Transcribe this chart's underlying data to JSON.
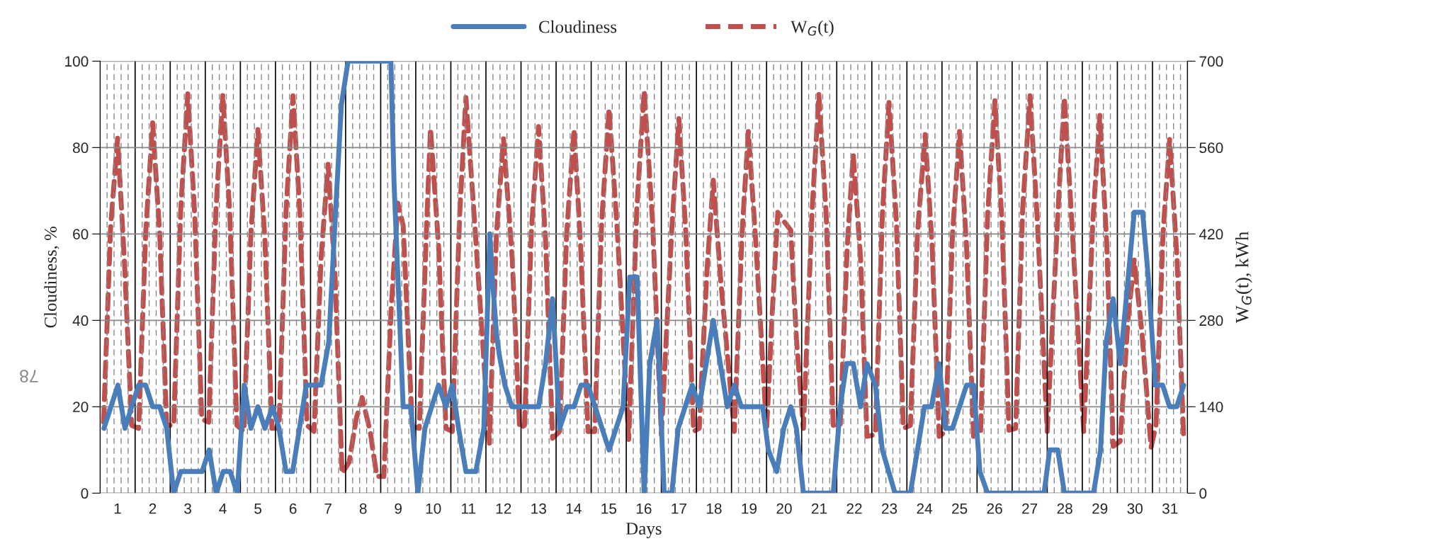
{
  "chart_data": {
    "type": "line",
    "xlabel": "Days",
    "ylabel": "Cloudiness, %",
    "y2label": "W$_{G}$(t), kWh",
    "xlim": [
      0,
      31
    ],
    "xticks": [
      {
        "value": 0,
        "label": null
      },
      {
        "value": 0.5,
        "label": "1"
      },
      {
        "value": 1,
        "label": null
      },
      {
        "value": 1.5,
        "label": "2"
      },
      {
        "value": 2,
        "label": null
      },
      {
        "value": 2.5,
        "label": "3"
      },
      {
        "value": 3,
        "label": null
      },
      {
        "value": 3.5,
        "label": "4"
      },
      {
        "value": 4,
        "label": null
      },
      {
        "value": 4.5,
        "label": "5"
      },
      {
        "value": 5,
        "label": null
      },
      {
        "value": 5.5,
        "label": "6"
      },
      {
        "value": 6,
        "label": null
      },
      {
        "value": 6.5,
        "label": "7"
      },
      {
        "value": 7,
        "label": null
      },
      {
        "value": 7.5,
        "label": "8"
      },
      {
        "value": 8,
        "label": null
      },
      {
        "value": 8.5,
        "label": "9"
      },
      {
        "value": 9,
        "label": null
      },
      {
        "value": 9.5,
        "label": "10"
      },
      {
        "value": 10,
        "label": null
      },
      {
        "value": 10.5,
        "label": "11"
      },
      {
        "value": 11,
        "label": null
      },
      {
        "value": 11.5,
        "label": "12"
      },
      {
        "value": 12,
        "label": null
      },
      {
        "value": 12.5,
        "label": "13"
      },
      {
        "value": 13,
        "label": null
      },
      {
        "value": 13.5,
        "label": "14"
      },
      {
        "value": 14,
        "label": null
      },
      {
        "value": 14.5,
        "label": "15"
      },
      {
        "value": 15,
        "label": null
      },
      {
        "value": 15.5,
        "label": "16"
      },
      {
        "value": 16,
        "label": null
      },
      {
        "value": 16.5,
        "label": "17"
      },
      {
        "value": 17,
        "label": null
      },
      {
        "value": 17.5,
        "label": "18"
      },
      {
        "value": 18,
        "label": null
      },
      {
        "value": 18.5,
        "label": "19"
      },
      {
        "value": 19,
        "label": null
      },
      {
        "value": 19.5,
        "label": "20"
      },
      {
        "value": 20,
        "label": null
      },
      {
        "value": 20.5,
        "label": "21"
      },
      {
        "value": 21,
        "label": null
      },
      {
        "value": 21.5,
        "label": "22"
      },
      {
        "value": 22,
        "label": null
      },
      {
        "value": 22.5,
        "label": "23"
      },
      {
        "value": 23,
        "label": null
      },
      {
        "value": 23.5,
        "label": "24"
      },
      {
        "value": 24,
        "label": null
      },
      {
        "value": 24.5,
        "label": "25"
      },
      {
        "value": 25,
        "label": null
      },
      {
        "value": 25.5,
        "label": "26"
      },
      {
        "value": 26,
        "label": null
      },
      {
        "value": 26.5,
        "label": "27"
      },
      {
        "value": 27,
        "label": null
      },
      {
        "value": 27.5,
        "label": "28"
      },
      {
        "value": 28,
        "label": null
      },
      {
        "value": 28.5,
        "label": "29"
      },
      {
        "value": 29,
        "label": null
      },
      {
        "value": 29.5,
        "label": "30"
      },
      {
        "value": 30,
        "label": null
      },
      {
        "value": 30.5,
        "label": "31"
      },
      {
        "value": 31,
        "label": null
      }
    ],
    "ylim": [
      0,
      100
    ],
    "yticks": [
      0,
      20,
      40,
      60,
      80,
      100
    ],
    "y2lim": [
      0,
      700
    ],
    "y2ticks": [
      0,
      140,
      280,
      420,
      560,
      700
    ],
    "grid": true,
    "legend": "top",
    "marker": "none",
    "annotations": [
      "78"
    ],
    "series": [
      {
        "name": "Cloudiness",
        "color": "#4a7ebb",
        "line_style": "solid",
        "x": [
          0.11,
          0.51,
          0.71,
          0.9,
          1.1,
          1.3,
          1.5,
          1.7,
          1.9,
          2.1,
          2.3,
          2.91,
          3.11,
          3.31,
          3.51,
          3.71,
          3.91,
          4.11,
          4.3,
          4.5,
          4.7,
          4.92,
          5.1,
          5.3,
          5.49,
          5.88,
          6.3,
          6.52,
          6.68,
          6.88,
          7.07,
          8.29,
          8.38,
          8.64,
          8.86,
          9.06,
          9.26,
          9.65,
          9.86,
          10.04,
          10.22,
          10.43,
          10.71,
          10.94,
          11.11,
          11.18,
          11.3,
          11.38,
          11.54,
          11.74,
          12.5,
          12.7,
          12.9,
          13.1,
          13.31,
          13.51,
          13.71,
          13.91,
          14.11,
          14.51,
          14.91,
          15.1,
          15.31,
          15.51,
          15.67,
          15.88,
          16.08,
          16.3,
          16.48,
          16.88,
          17.08,
          17.48,
          17.88,
          18.08,
          18.28,
          18.89,
          19.05,
          19.29,
          19.49,
          19.69,
          19.85,
          20.05,
          20.9,
          21.1,
          21.28,
          21.47,
          21.68,
          21.86,
          22.1,
          22.3,
          22.66,
          23.1,
          23.5,
          23.7,
          23.92,
          24.1,
          24.3,
          24.7,
          24.9,
          25.08,
          25.3,
          26.91,
          27.07,
          27.3,
          27.49,
          28.32,
          28.52,
          28.68,
          28.88,
          29.08,
          29.48,
          29.72,
          29.88,
          30.08,
          30.29,
          30.49,
          30.69,
          30.89
        ],
        "values": [
          15,
          25,
          15,
          20,
          25,
          25,
          20,
          20,
          15,
          0,
          5,
          5,
          10,
          0,
          5,
          5,
          0,
          25,
          15,
          20,
          15,
          20,
          15,
          5,
          5,
          25,
          25,
          35,
          60,
          90,
          100,
          100,
          72,
          20,
          20,
          0,
          15,
          25,
          20,
          25,
          15,
          5,
          5,
          15,
          60,
          50,
          37,
          32,
          25,
          20,
          20,
          30,
          45,
          15,
          20,
          20,
          25,
          25,
          20,
          10,
          20,
          50,
          50,
          0,
          30,
          40,
          0,
          0,
          15,
          25,
          20,
          40,
          20,
          25,
          20,
          20,
          10,
          5,
          15,
          20,
          15,
          0,
          0,
          20,
          30,
          30,
          20,
          30,
          25,
          10,
          0,
          0,
          20,
          20,
          30,
          15,
          15,
          25,
          25,
          5,
          0,
          0,
          10,
          10,
          0,
          0,
          10,
          35,
          45,
          30,
          65,
          65,
          50,
          25,
          25,
          20,
          20,
          25
        ]
      },
      {
        "name": "W$_{G}$(t)",
        "color": "#c0504d",
        "line_style": "dashed",
        "axis": "y2",
        "x": [
          0.1,
          0.3,
          0.5,
          0.7,
          0.9,
          1.1,
          1.3,
          1.5,
          1.7,
          1.9,
          2.1,
          2.3,
          2.5,
          2.7,
          2.9,
          3.1,
          3.3,
          3.5,
          3.7,
          3.9,
          4.1,
          4.3,
          4.5,
          4.7,
          4.9,
          5.1,
          5.3,
          5.5,
          5.7,
          5.9,
          6.1,
          6.3,
          6.5,
          6.7,
          6.9,
          7.1,
          7.3,
          7.47,
          7.7,
          7.89,
          8.09,
          8.3,
          8.49,
          8.64,
          8.9,
          9.1,
          9.3,
          9.42,
          9.65,
          9.86,
          10.04,
          10.25,
          10.43,
          10.7,
          11.1,
          11.3,
          11.5,
          11.75,
          11.96,
          12.1,
          12.3,
          12.5,
          12.7,
          12.9,
          13.1,
          13.3,
          13.51,
          13.7,
          13.91,
          14.1,
          14.3,
          14.51,
          14.75,
          15.07,
          15.3,
          15.51,
          15.75,
          16.0,
          16.3,
          16.5,
          16.7,
          16.92,
          17.08,
          17.3,
          17.48,
          17.7,
          18.08,
          18.3,
          18.48,
          18.7,
          19.0,
          19.15,
          19.32,
          19.5,
          19.69,
          19.85,
          20.05,
          20.3,
          20.49,
          20.7,
          20.9,
          21.1,
          21.3,
          21.47,
          21.68,
          21.86,
          22.1,
          22.3,
          22.49,
          22.7,
          22.9,
          23.1,
          23.3,
          23.52,
          23.72,
          23.92,
          24.1,
          24.3,
          24.5,
          24.7,
          24.9,
          25.1,
          25.3,
          25.51,
          25.71,
          25.91,
          26.1,
          26.3,
          26.51,
          26.72,
          27.0,
          27.3,
          27.49,
          27.7,
          28.04,
          28.3,
          28.5,
          28.7,
          28.88,
          29.08,
          29.3,
          29.48,
          29.7,
          29.96,
          30.1,
          30.3,
          30.49,
          30.7,
          30.89
        ],
        "values": [
          115,
          430,
          575,
          370,
          110,
          105,
          420,
          600,
          420,
          110,
          110,
          460,
          647,
          450,
          120,
          115,
          455,
          646,
          450,
          110,
          100,
          420,
          589,
          410,
          105,
          105,
          455,
          644,
          450,
          110,
          100,
          380,
          533,
          350,
          32,
          50,
          120,
          155,
          100,
          27,
          27,
          300,
          470,
          434,
          108,
          105,
          420,
          591,
          400,
          105,
          100,
          450,
          641,
          420,
          81,
          420,
          575,
          380,
          105,
          110,
          430,
          594,
          410,
          89,
          100,
          420,
          589,
          400,
          100,
          100,
          440,
          623,
          420,
          87,
          460,
          652,
          440,
          95,
          430,
          607,
          420,
          100,
          105,
          360,
          507,
          340,
          100,
          420,
          586,
          400,
          102,
          280,
          455,
          440,
          426,
          250,
          105,
          460,
          646,
          450,
          110,
          110,
          400,
          549,
          380,
          92,
          95,
          450,
          633,
          440,
          105,
          110,
          420,
          581,
          400,
          92,
          100,
          420,
          586,
          400,
          92,
          100,
          450,
          636,
          440,
          102,
          105,
          460,
          644,
          440,
          100,
          450,
          641,
          440,
          100,
          440,
          612,
          400,
          76,
          84,
          280,
          378,
          260,
          74,
          110,
          420,
          573,
          380,
          89
        ]
      }
    ]
  }
}
